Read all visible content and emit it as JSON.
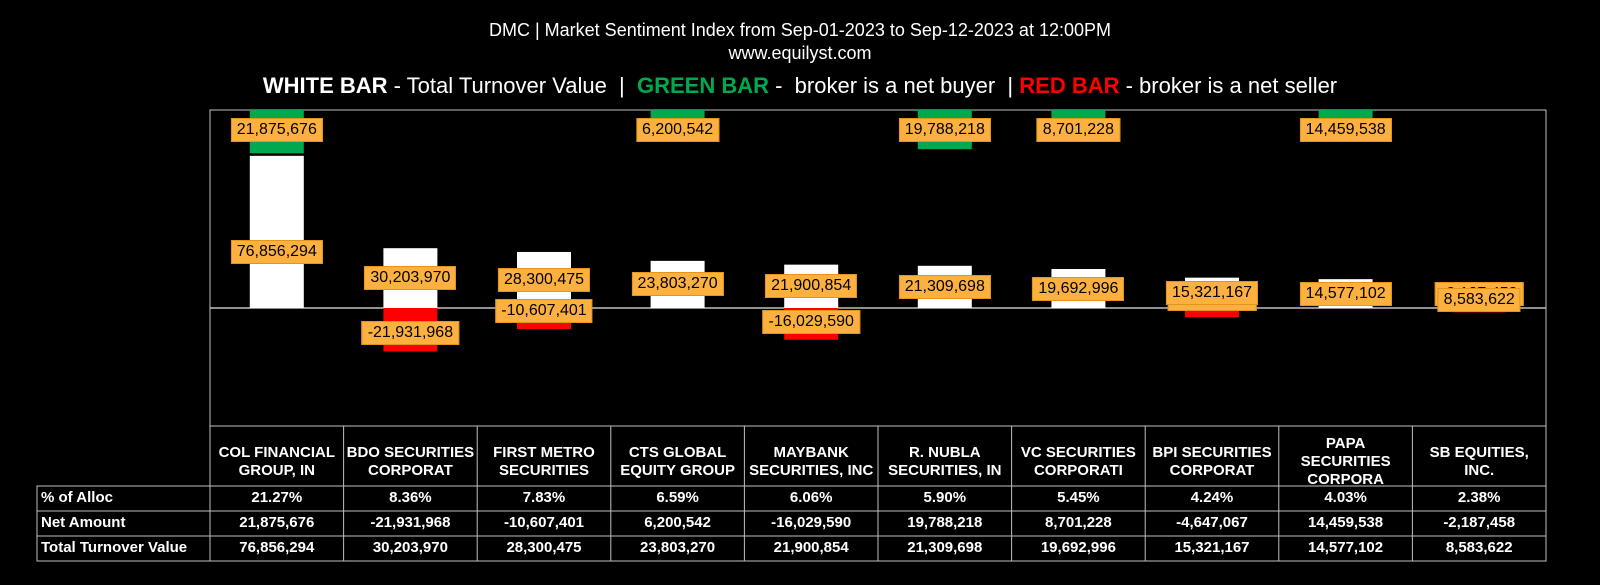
{
  "header": {
    "title_line1": "DMC | Market Sentiment Index from Sep-01-2023 to Sep-12-2023 at 12:00PM",
    "title_line2": "www.equilyst.com",
    "legend": {
      "white_label": "WHITE BAR",
      "white_desc": " - Total Turnover Value  |  ",
      "green_label": "GREEN BAR",
      "green_desc": " -  broker is a net buyer  | ",
      "red_label": "RED BAR",
      "red_desc": " - broker is a net seller"
    }
  },
  "colors": {
    "background": "#000000",
    "turnover": "#ffffff",
    "buy": "#00a94f",
    "sell": "#ff0000",
    "label_bg": "#fbb040",
    "grid": "#bfbfbf"
  },
  "chart_data": {
    "type": "bar",
    "categories": [
      "COL FINANCIAL GROUP, IN",
      "BDO SECURITIES CORPORAT",
      "FIRST METRO SECURITIES",
      "CTS GLOBAL EQUITY GROUP",
      "MAYBANK SECURITIES, INC",
      "R. NUBLA SECURITIES, IN",
      "VC SECURITIES CORPORATI",
      "BPI SECURITIES CORPORAT",
      "PAPA SECURITIES CORPORA",
      "SB EQUITIES, INC."
    ],
    "series": [
      {
        "name": "Total Turnover Value",
        "values": [
          76856294,
          30203970,
          28300475,
          23803270,
          21900854,
          21309698,
          19692996,
          15321167,
          14577102,
          8583622
        ]
      },
      {
        "name": "Net Amount",
        "values": [
          21875676,
          -21931968,
          -10607401,
          6200542,
          -16029590,
          19788218,
          8701228,
          -4647067,
          14459538,
          -2187458
        ]
      }
    ],
    "turnover_labels": [
      "76,856,294",
      "30,203,970",
      "28,300,475",
      "23,803,270",
      "21,900,854",
      "21,309,698",
      "19,692,996",
      "15,321,167",
      "14,577,102",
      "8,583,622"
    ],
    "net_labels": [
      "21,875,676",
      "-21,931,968",
      "-10,607,401",
      "6,200,542",
      "-16,029,590",
      "19,788,218",
      "8,701,228",
      "-4,647,067",
      "14,459,538",
      "-2,187,458"
    ]
  },
  "table": {
    "header_labels": [
      "COL FINANCIAL GROUP, IN",
      "BDO SECURITIES CORPORAT",
      "FIRST METRO SECURITIES",
      "CTS GLOBAL EQUITY GROUP",
      "MAYBANK SECURITIES, INC",
      "R. NUBLA SECURITIES, IN",
      "VC SECURITIES CORPORATI",
      "BPI SECURITIES CORPORAT",
      "PAPA SECURITIES CORPORA",
      "SB EQUITIES, INC."
    ],
    "rows": [
      {
        "label": "% of Alloc",
        "values": [
          "21.27%",
          "8.36%",
          "7.83%",
          "6.59%",
          "6.06%",
          "5.90%",
          "5.45%",
          "4.24%",
          "4.03%",
          "2.38%"
        ]
      },
      {
        "label": "Net Amount",
        "values": [
          "21,875,676",
          "-21,931,968",
          "-10,607,401",
          "6,200,542",
          "-16,029,590",
          "19,788,218",
          "8,701,228",
          "-4,647,067",
          "14,459,538",
          "-2,187,458"
        ]
      },
      {
        "label": "Total Turnover Value",
        "values": [
          "76,856,294",
          "30,203,970",
          "28,300,475",
          "23,803,270",
          "21,900,854",
          "21,309,698",
          "19,692,996",
          "15,321,167",
          "14,577,102",
          "8,583,622"
        ]
      }
    ]
  }
}
